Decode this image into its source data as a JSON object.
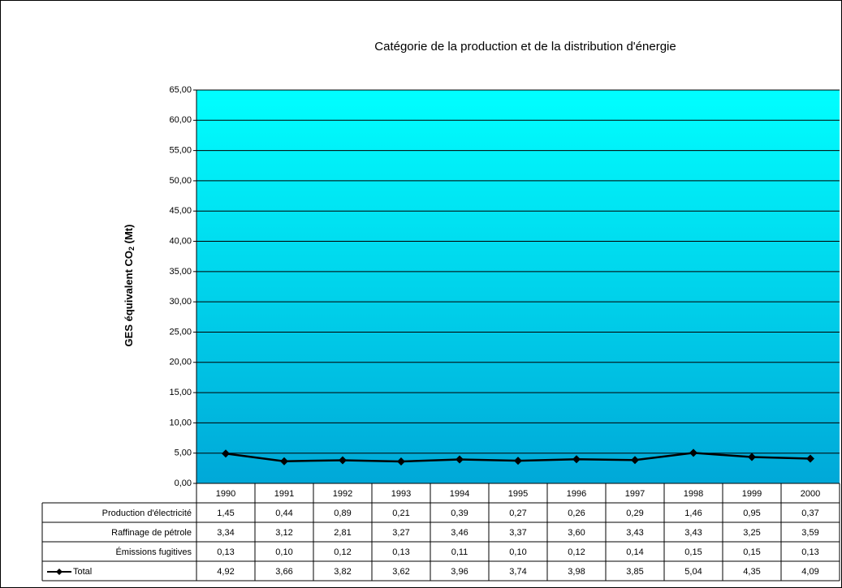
{
  "chart_data": {
    "type": "line",
    "title": "Catégorie de la production et de la distribution d'énergie",
    "y_label": [
      "GES équivalent CO",
      "2",
      " (Mt)"
    ],
    "categories": [
      "1990",
      "1991",
      "1992",
      "1993",
      "1994",
      "1995",
      "1996",
      "1997",
      "1998",
      "1999",
      "2000"
    ],
    "ylim": [
      0,
      65
    ],
    "yticks": [
      {
        "value": 0,
        "label": "0,00"
      },
      {
        "value": 5,
        "label": "5,00"
      },
      {
        "value": 10,
        "label": "10,00"
      },
      {
        "value": 15,
        "label": "15,00"
      },
      {
        "value": 20,
        "label": "20,00"
      },
      {
        "value": 25,
        "label": "25,00"
      },
      {
        "value": 30,
        "label": "30,00"
      },
      {
        "value": 35,
        "label": "35,00"
      },
      {
        "value": 40,
        "label": "40,00"
      },
      {
        "value": 45,
        "label": "45,00"
      },
      {
        "value": 50,
        "label": "50,00"
      },
      {
        "value": 55,
        "label": "55,00"
      },
      {
        "value": 60,
        "label": "60,00"
      },
      {
        "value": 65,
        "label": "65,00"
      }
    ],
    "grid": true,
    "series": [
      {
        "name": "Production d'électricité",
        "values": [
          1.45,
          0.44,
          0.89,
          0.21,
          0.39,
          0.27,
          0.26,
          0.29,
          1.46,
          0.95,
          0.37
        ],
        "value_labels": [
          "1,45",
          "0,44",
          "0,89",
          "0,21",
          "0,39",
          "0,27",
          "0,26",
          "0,29",
          "1,46",
          "0,95",
          "0,37"
        ]
      },
      {
        "name": "Raffinage de pétrole",
        "values": [
          3.34,
          3.12,
          2.81,
          3.27,
          3.46,
          3.37,
          3.6,
          3.43,
          3.43,
          3.25,
          3.59
        ],
        "value_labels": [
          "3,34",
          "3,12",
          "2,81",
          "3,27",
          "3,46",
          "3,37",
          "3,60",
          "3,43",
          "3,43",
          "3,25",
          "3,59"
        ]
      },
      {
        "name": "Émissions fugitives",
        "values": [
          0.13,
          0.1,
          0.12,
          0.13,
          0.11,
          0.1,
          0.12,
          0.14,
          0.15,
          0.15,
          0.13
        ],
        "value_labels": [
          "0,13",
          "0,10",
          "0,12",
          "0,13",
          "0,11",
          "0,10",
          "0,12",
          "0,14",
          "0,15",
          "0,15",
          "0,13"
        ]
      },
      {
        "name": "Total",
        "color": "#000000",
        "line": true,
        "values": [
          4.92,
          3.66,
          3.82,
          3.62,
          3.96,
          3.74,
          3.98,
          3.85,
          5.04,
          4.35,
          4.09
        ],
        "value_labels": [
          "4,92",
          "3,66",
          "3,82",
          "3,62",
          "3,96",
          "3,74",
          "3,98",
          "3,85",
          "5,04",
          "4,35",
          "4,09"
        ]
      }
    ]
  }
}
